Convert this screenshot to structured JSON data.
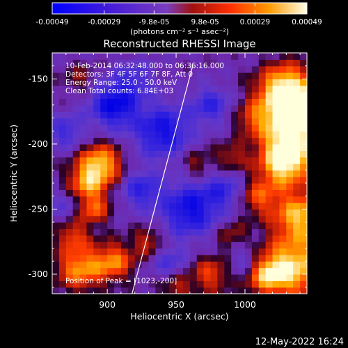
{
  "colorbar": {
    "tick_labels": [
      "-0.00049",
      "-0.00029",
      "-9.8e-05",
      "9.8e-05",
      "0.00029",
      "0.00049"
    ],
    "tick_values": [
      -0.00049,
      -0.00029,
      -9.8e-05,
      9.8e-05,
      0.00029,
      0.00049
    ],
    "range": [
      -0.00049,
      0.00049
    ],
    "units_label": "(photons cm⁻² s⁻¹ asec⁻²)"
  },
  "chart_data": {
    "type": "heatmap",
    "title": "Reconstructed RHESSI Image",
    "xlabel": "Heliocentric X (arcsec)",
    "ylabel": "Heliocentric Y (arcsec)",
    "xlim": [
      860,
      1045
    ],
    "ylim": [
      -315,
      -130
    ],
    "x_ticks": [
      900,
      950,
      1000
    ],
    "x_tick_labels": [
      "900",
      "950",
      "1000"
    ],
    "y_ticks": [
      -150,
      -200,
      -250,
      -300
    ],
    "y_tick_labels": [
      "-150",
      "-200",
      "-250",
      "-300"
    ],
    "limb_line": [
      [
        918,
        -315
      ],
      [
        962,
        -140
      ]
    ],
    "info_lines": [
      "10-Feb-2014 06:32:48.000 to 06:36:16.000",
      "Detectors: 3F 4F 5F 6F 7F 8F, Att 0",
      "Energy Range: 25.0 - 50.0 keV",
      "Clean      Total counts: 6.84E+03"
    ],
    "peak_label": "Position of Peak = [1023,-200]",
    "peak_position": [
      1023,
      -200
    ],
    "colors": {
      "low": "#0000ff",
      "mid": "#6633cc",
      "high": "#ffffe0"
    }
  },
  "footer": {
    "date": "12-May-2022 16:24"
  }
}
